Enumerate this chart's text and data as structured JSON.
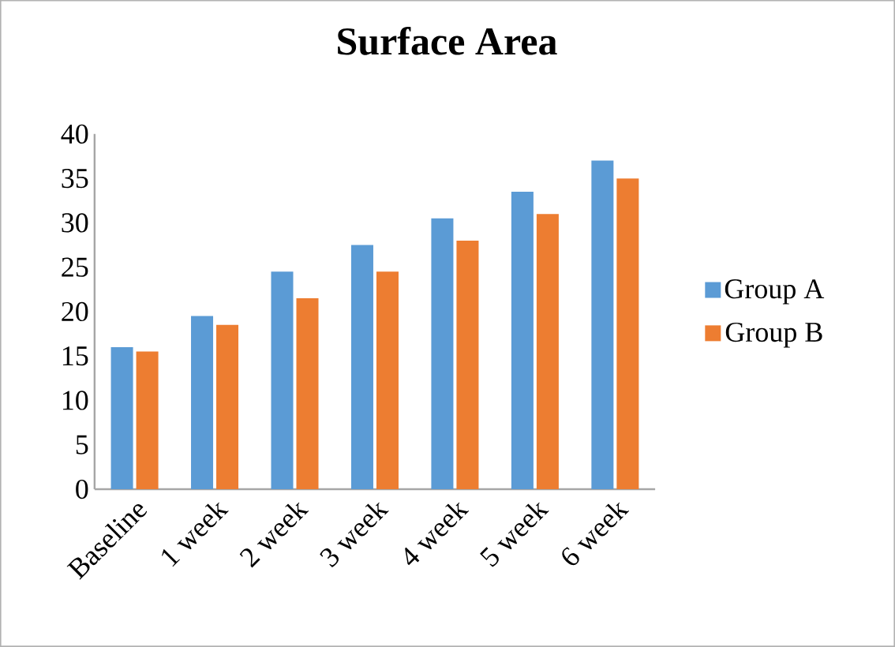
{
  "chart_data": {
    "type": "bar",
    "title": "Surface Area",
    "categories": [
      "Baseline",
      "1 week",
      "2 week",
      "3 week",
      "4 week",
      "5 week",
      "6 week"
    ],
    "series": [
      {
        "name": "Group A",
        "color": "#5b9bd5",
        "values": [
          16,
          19.5,
          24.5,
          27.5,
          30.5,
          33.5,
          37
        ]
      },
      {
        "name": "Group B",
        "color": "#ed7d31",
        "values": [
          15.5,
          18.5,
          21.5,
          24.5,
          28,
          31,
          35
        ]
      }
    ],
    "ylim": [
      0,
      40
    ],
    "yticks": [
      0,
      5,
      10,
      15,
      20,
      25,
      30,
      35,
      40
    ],
    "grid": false,
    "legend": "right"
  }
}
